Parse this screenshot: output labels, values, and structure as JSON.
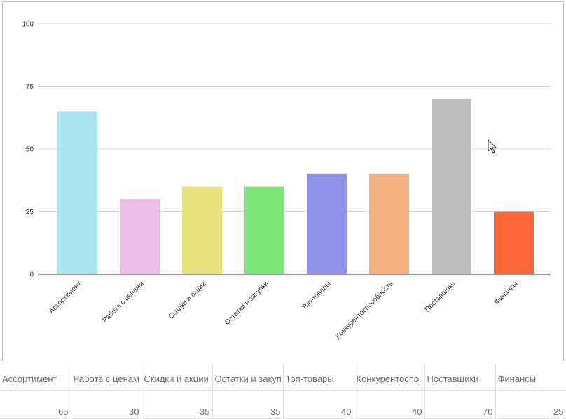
{
  "chart_data": {
    "type": "bar",
    "categories": [
      "Ассортимент",
      "Работа с ценами",
      "Скидки и акции",
      "Остатки и закупки",
      "Топ-товары",
      "Конкурентоспособность",
      "Поставщики",
      "Финансы"
    ],
    "values": [
      65,
      30,
      35,
      35,
      40,
      40,
      70,
      25
    ],
    "colors": [
      "#abe5ef",
      "#ecbde9",
      "#e7e47c",
      "#7de77c",
      "#9292ea",
      "#f3b081",
      "#bdbdbd",
      "#ff6536"
    ],
    "ylim": [
      0,
      100
    ],
    "yticks": [
      0,
      25,
      50,
      75,
      100
    ],
    "title": "",
    "xlabel": "",
    "ylabel": "",
    "grid": true,
    "legend": "none"
  },
  "table": {
    "headers": [
      "Ассортимент",
      "Работа с ценам",
      "Скидки и акции",
      "Остатки и закуп",
      "Топ-товары",
      "Конкурентоспо",
      "Поставщики",
      "Финансы"
    ],
    "values": [
      "65",
      "30",
      "35",
      "35",
      "40",
      "40",
      "70",
      "25"
    ]
  }
}
